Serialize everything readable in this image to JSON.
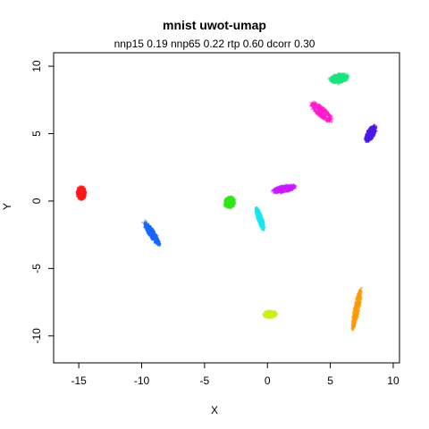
{
  "chart_data": {
    "type": "scatter",
    "title": "mnist uwot-umap",
    "subtitle": "nnp15 0.19 nnp65 0.22 rtp 0.60 dcorr 0.30",
    "xlabel": "X",
    "ylabel": "Y",
    "xlim": [
      -17,
      10.5
    ],
    "ylim": [
      -12,
      11
    ],
    "xticks": [
      -15,
      -10,
      -5,
      0,
      5,
      10
    ],
    "yticks": [
      -10,
      -5,
      0,
      5,
      10
    ],
    "xtick_labels": [
      "-15",
      "-10",
      "-5",
      "0",
      "5",
      "10"
    ],
    "ytick_labels": [
      "-10",
      "-5",
      "0",
      "5",
      "10"
    ],
    "grid": false,
    "clusters": [
      {
        "color": "#ff1a1a",
        "center": [
          -14.8,
          0.6
        ],
        "spread": [
          0.8,
          1.1
        ],
        "angle": 0
      },
      {
        "color": "#1a66ff",
        "center": [
          -9.2,
          -2.4
        ],
        "spread": [
          2.3,
          0.6
        ],
        "angle": -55
      },
      {
        "color": "#33e61a",
        "center": [
          -3.0,
          -0.1
        ],
        "spread": [
          1.0,
          0.9
        ],
        "angle": 30
      },
      {
        "color": "#1ae6f0",
        "center": [
          -0.6,
          -1.3
        ],
        "spread": [
          2.0,
          0.5
        ],
        "angle": -70
      },
      {
        "color": "#cc1aff",
        "center": [
          1.3,
          0.9
        ],
        "spread": [
          2.0,
          0.6
        ],
        "angle": 10
      },
      {
        "color": "#ff1acc",
        "center": [
          4.3,
          6.6
        ],
        "spread": [
          2.3,
          0.8
        ],
        "angle": -40
      },
      {
        "color": "#1ae680",
        "center": [
          5.7,
          9.1
        ],
        "spread": [
          1.6,
          0.8
        ],
        "angle": 10
      },
      {
        "color": "#4d1ae6",
        "center": [
          8.2,
          5.0
        ],
        "spread": [
          1.5,
          0.7
        ],
        "angle": 60
      },
      {
        "color": "#ff9900",
        "center": [
          7.1,
          -8.0
        ],
        "spread": [
          3.4,
          0.5
        ],
        "angle": 78
      },
      {
        "color": "#ccf01a",
        "center": [
          0.2,
          -8.4
        ],
        "spread": [
          1.2,
          0.6
        ],
        "angle": 0
      }
    ]
  }
}
